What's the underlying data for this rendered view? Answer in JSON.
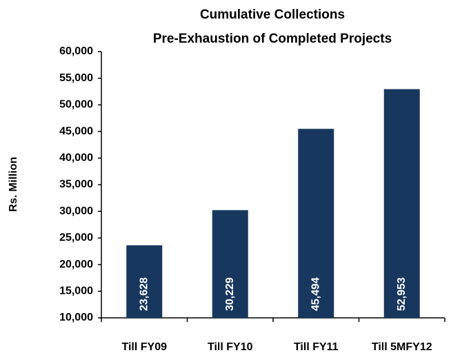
{
  "chart_data": {
    "type": "bar",
    "title": [
      "Cumulative Collections",
      "Pre-Exhaustion of Completed Projects"
    ],
    "y_label": "Rs. Million",
    "categories": [
      "Till FY09",
      "Till FY10",
      "Till FY11",
      "Till 5MFY12"
    ],
    "values": [
      23628,
      30229,
      45494,
      52953
    ],
    "value_labels": [
      "23,628",
      "30,229",
      "45,494",
      "52,953"
    ],
    "color": "#17375e",
    "ylim": [
      10000,
      60000
    ],
    "yticks": [
      {
        "value": 10000,
        "label": "10,000"
      },
      {
        "value": 15000,
        "label": "15,000"
      },
      {
        "value": 20000,
        "label": "20,000"
      },
      {
        "value": 25000,
        "label": "25,000"
      },
      {
        "value": 30000,
        "label": "30,000"
      },
      {
        "value": 35000,
        "label": "35,000"
      },
      {
        "value": 40000,
        "label": "40,000"
      },
      {
        "value": 45000,
        "label": "45,000"
      },
      {
        "value": 50000,
        "label": "50,000"
      },
      {
        "value": 55000,
        "label": "55,000"
      },
      {
        "value": 60000,
        "label": "60,000"
      }
    ],
    "grid": false
  }
}
